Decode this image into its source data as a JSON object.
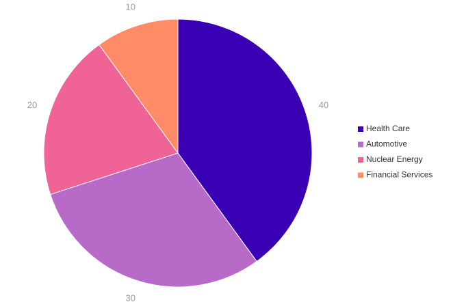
{
  "chart_data": {
    "type": "pie",
    "categories": [
      "Health Care",
      "Automotive",
      "Nuclear Energy",
      "Financial Services"
    ],
    "values": [
      40,
      30,
      20,
      10
    ],
    "colors": [
      "#3a00b4",
      "#b86ac9",
      "#ef6396",
      "#ff8c66"
    ],
    "data_labels": [
      "40",
      "30",
      "20",
      "10"
    ],
    "legend_position": "right",
    "start_angle": "top, clockwise"
  }
}
